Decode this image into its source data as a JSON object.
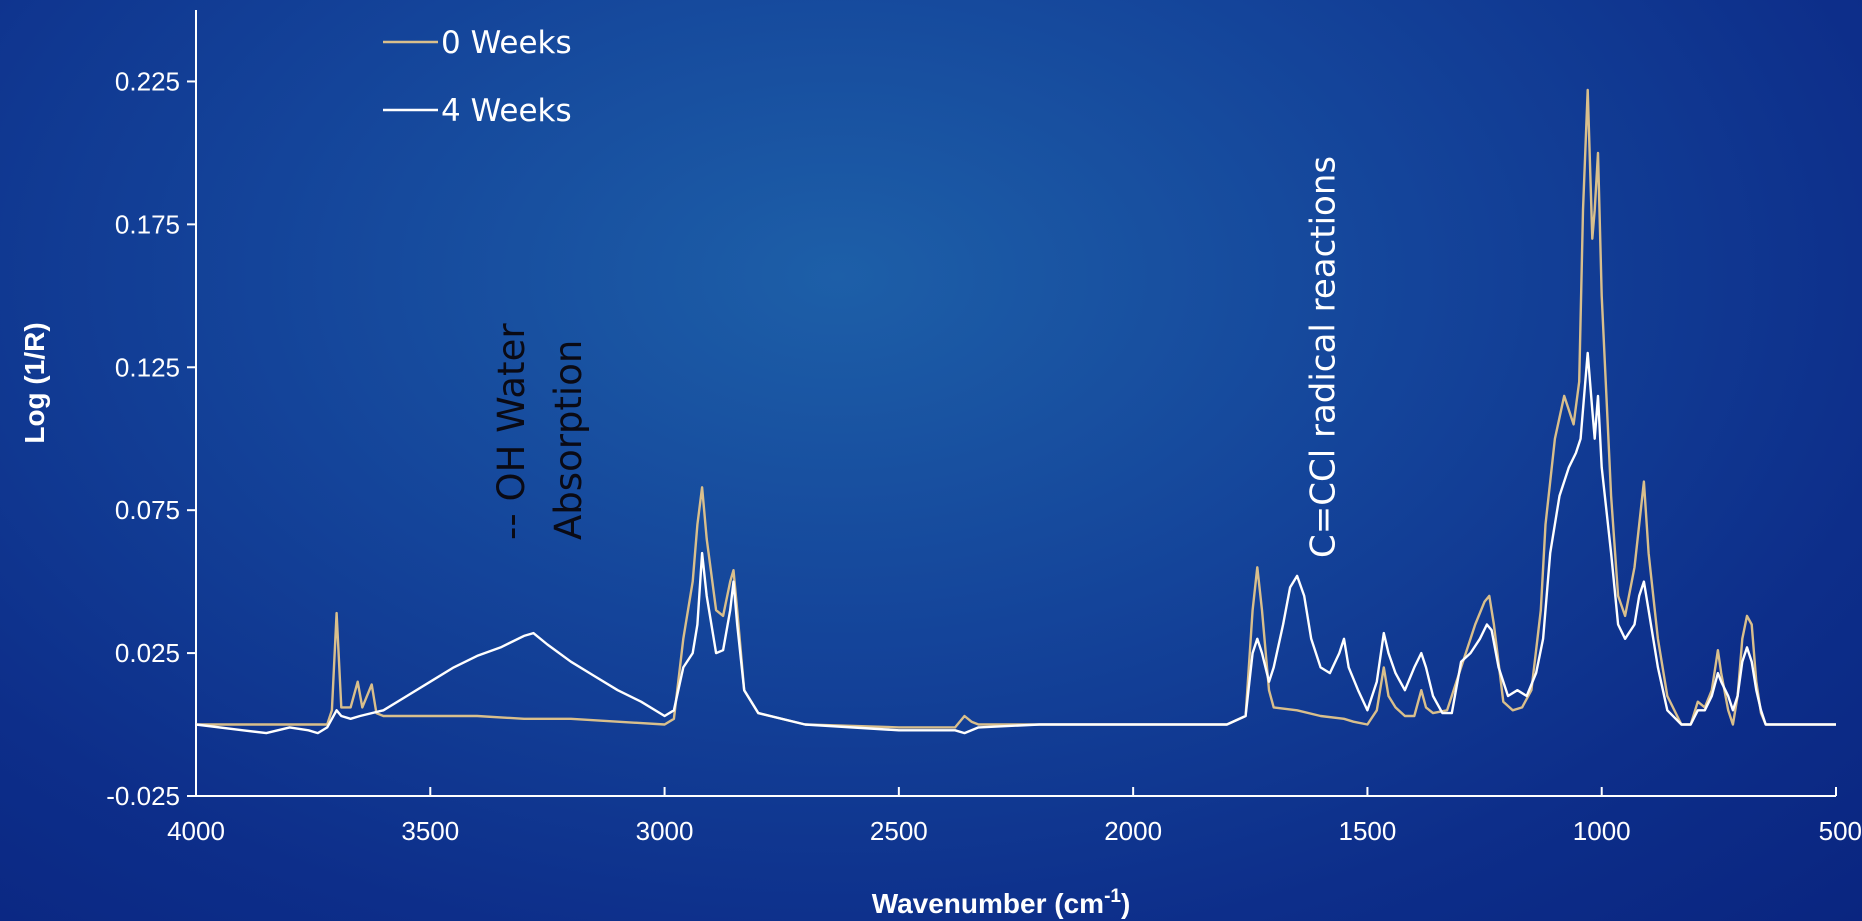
{
  "chart_data": {
    "type": "line",
    "title": "",
    "xlabel": "Wavenumber (cm",
    "xlabel_sup": "-1",
    "xlabel_end": ")",
    "ylabel": "Log (1/R)",
    "xlim": [
      4000,
      500
    ],
    "ylim": [
      -0.025,
      0.25
    ],
    "x_ticks": [
      "4000",
      "3500",
      "3000",
      "2500",
      "2000",
      "1500",
      "1000",
      "500"
    ],
    "y_ticks": [
      "-0.025",
      "0.025",
      "0.075",
      "0.125",
      "0.175",
      "0.225"
    ],
    "legend_position": "top-left",
    "annotations": [
      {
        "lines": [
          "-- OH Water",
          "Absorption"
        ],
        "x": 3300,
        "style": "dark"
      },
      {
        "lines": [
          "C=CCl radical reactions"
        ],
        "x": 1570,
        "style": "light"
      }
    ],
    "series": [
      {
        "name": "0 Weeks",
        "color": "#d9bf8c",
        "points": [
          [
            4000,
            0
          ],
          [
            3900,
            0
          ],
          [
            3800,
            0
          ],
          [
            3720,
            0
          ],
          [
            3710,
            0.005
          ],
          [
            3700,
            0.039
          ],
          [
            3690,
            0.006
          ],
          [
            3670,
            0.006
          ],
          [
            3655,
            0.015
          ],
          [
            3645,
            0.006
          ],
          [
            3625,
            0.014
          ],
          [
            3615,
            0.004
          ],
          [
            3600,
            0.003
          ],
          [
            3500,
            0.003
          ],
          [
            3400,
            0.003
          ],
          [
            3300,
            0.002
          ],
          [
            3200,
            0.002
          ],
          [
            3100,
            0.001
          ],
          [
            3000,
            0
          ],
          [
            2980,
            0.002
          ],
          [
            2960,
            0.03
          ],
          [
            2940,
            0.05
          ],
          [
            2930,
            0.07
          ],
          [
            2920,
            0.083
          ],
          [
            2910,
            0.065
          ],
          [
            2890,
            0.04
          ],
          [
            2875,
            0.038
          ],
          [
            2860,
            0.05
          ],
          [
            2853,
            0.054
          ],
          [
            2845,
            0.04
          ],
          [
            2830,
            0.012
          ],
          [
            2800,
            0.004
          ],
          [
            2700,
            0
          ],
          [
            2500,
            -0.001
          ],
          [
            2380,
            -0.001
          ],
          [
            2360,
            0.003
          ],
          [
            2345,
            0.001
          ],
          [
            2330,
            0
          ],
          [
            2200,
            0
          ],
          [
            2000,
            0
          ],
          [
            1800,
            0
          ],
          [
            1760,
            0.003
          ],
          [
            1745,
            0.04
          ],
          [
            1735,
            0.055
          ],
          [
            1725,
            0.04
          ],
          [
            1710,
            0.012
          ],
          [
            1700,
            0.006
          ],
          [
            1650,
            0.005
          ],
          [
            1600,
            0.003
          ],
          [
            1550,
            0.002
          ],
          [
            1530,
            0.001
          ],
          [
            1500,
            0
          ],
          [
            1480,
            0.005
          ],
          [
            1465,
            0.02
          ],
          [
            1455,
            0.01
          ],
          [
            1440,
            0.006
          ],
          [
            1420,
            0.003
          ],
          [
            1400,
            0.003
          ],
          [
            1385,
            0.012
          ],
          [
            1375,
            0.006
          ],
          [
            1360,
            0.004
          ],
          [
            1330,
            0.005
          ],
          [
            1300,
            0.02
          ],
          [
            1270,
            0.035
          ],
          [
            1250,
            0.043
          ],
          [
            1240,
            0.045
          ],
          [
            1230,
            0.035
          ],
          [
            1210,
            0.008
          ],
          [
            1190,
            0.005
          ],
          [
            1170,
            0.006
          ],
          [
            1150,
            0.012
          ],
          [
            1130,
            0.04
          ],
          [
            1120,
            0.07
          ],
          [
            1100,
            0.1
          ],
          [
            1080,
            0.115
          ],
          [
            1060,
            0.105
          ],
          [
            1048,
            0.12
          ],
          [
            1040,
            0.18
          ],
          [
            1030,
            0.222
          ],
          [
            1020,
            0.17
          ],
          [
            1015,
            0.18
          ],
          [
            1008,
            0.2
          ],
          [
            1000,
            0.15
          ],
          [
            980,
            0.08
          ],
          [
            965,
            0.045
          ],
          [
            950,
            0.038
          ],
          [
            930,
            0.055
          ],
          [
            920,
            0.07
          ],
          [
            910,
            0.085
          ],
          [
            900,
            0.06
          ],
          [
            880,
            0.03
          ],
          [
            860,
            0.01
          ],
          [
            830,
            0
          ],
          [
            810,
            0
          ],
          [
            795,
            0.008
          ],
          [
            780,
            0.006
          ],
          [
            765,
            0.012
          ],
          [
            752,
            0.026
          ],
          [
            745,
            0.018
          ],
          [
            730,
            0.005
          ],
          [
            720,
            0
          ],
          [
            710,
            0.01
          ],
          [
            700,
            0.03
          ],
          [
            690,
            0.038
          ],
          [
            680,
            0.035
          ],
          [
            670,
            0.015
          ],
          [
            660,
            0.004
          ],
          [
            650,
            0
          ],
          [
            500,
            0
          ]
        ]
      },
      {
        "name": "4 Weeks",
        "color": "#ffffff",
        "points": [
          [
            4000,
            0
          ],
          [
            3900,
            -0.002
          ],
          [
            3850,
            -0.003
          ],
          [
            3800,
            -0.001
          ],
          [
            3760,
            -0.002
          ],
          [
            3740,
            -0.003
          ],
          [
            3720,
            -0.001
          ],
          [
            3700,
            0.005
          ],
          [
            3690,
            0.003
          ],
          [
            3670,
            0.002
          ],
          [
            3650,
            0.003
          ],
          [
            3600,
            0.005
          ],
          [
            3550,
            0.01
          ],
          [
            3500,
            0.015
          ],
          [
            3450,
            0.02
          ],
          [
            3400,
            0.024
          ],
          [
            3350,
            0.027
          ],
          [
            3300,
            0.031
          ],
          [
            3280,
            0.032
          ],
          [
            3250,
            0.028
          ],
          [
            3200,
            0.022
          ],
          [
            3150,
            0.017
          ],
          [
            3100,
            0.012
          ],
          [
            3050,
            0.008
          ],
          [
            3000,
            0.003
          ],
          [
            2980,
            0.005
          ],
          [
            2960,
            0.02
          ],
          [
            2940,
            0.025
          ],
          [
            2930,
            0.035
          ],
          [
            2920,
            0.06
          ],
          [
            2910,
            0.045
          ],
          [
            2890,
            0.025
          ],
          [
            2875,
            0.026
          ],
          [
            2860,
            0.04
          ],
          [
            2853,
            0.05
          ],
          [
            2845,
            0.035
          ],
          [
            2830,
            0.012
          ],
          [
            2800,
            0.004
          ],
          [
            2700,
            0
          ],
          [
            2500,
            -0.002
          ],
          [
            2380,
            -0.002
          ],
          [
            2360,
            -0.003
          ],
          [
            2345,
            -0.002
          ],
          [
            2330,
            -0.001
          ],
          [
            2200,
            0
          ],
          [
            2000,
            0
          ],
          [
            1800,
            0
          ],
          [
            1760,
            0.003
          ],
          [
            1745,
            0.025
          ],
          [
            1735,
            0.03
          ],
          [
            1725,
            0.025
          ],
          [
            1710,
            0.015
          ],
          [
            1700,
            0.02
          ],
          [
            1680,
            0.035
          ],
          [
            1665,
            0.048
          ],
          [
            1650,
            0.052
          ],
          [
            1635,
            0.045
          ],
          [
            1620,
            0.03
          ],
          [
            1600,
            0.02
          ],
          [
            1580,
            0.018
          ],
          [
            1560,
            0.025
          ],
          [
            1550,
            0.03
          ],
          [
            1540,
            0.02
          ],
          [
            1520,
            0.012
          ],
          [
            1500,
            0.005
          ],
          [
            1480,
            0.015
          ],
          [
            1465,
            0.032
          ],
          [
            1455,
            0.025
          ],
          [
            1440,
            0.018
          ],
          [
            1420,
            0.012
          ],
          [
            1400,
            0.02
          ],
          [
            1385,
            0.025
          ],
          [
            1375,
            0.02
          ],
          [
            1360,
            0.01
          ],
          [
            1340,
            0.004
          ],
          [
            1320,
            0.004
          ],
          [
            1300,
            0.022
          ],
          [
            1280,
            0.025
          ],
          [
            1260,
            0.03
          ],
          [
            1245,
            0.035
          ],
          [
            1235,
            0.033
          ],
          [
            1220,
            0.02
          ],
          [
            1200,
            0.01
          ],
          [
            1180,
            0.012
          ],
          [
            1160,
            0.01
          ],
          [
            1140,
            0.018
          ],
          [
            1125,
            0.03
          ],
          [
            1110,
            0.06
          ],
          [
            1090,
            0.08
          ],
          [
            1070,
            0.09
          ],
          [
            1055,
            0.095
          ],
          [
            1045,
            0.1
          ],
          [
            1035,
            0.12
          ],
          [
            1030,
            0.13
          ],
          [
            1020,
            0.11
          ],
          [
            1015,
            0.1
          ],
          [
            1008,
            0.115
          ],
          [
            1000,
            0.09
          ],
          [
            980,
            0.06
          ],
          [
            965,
            0.035
          ],
          [
            950,
            0.03
          ],
          [
            930,
            0.035
          ],
          [
            920,
            0.045
          ],
          [
            910,
            0.05
          ],
          [
            900,
            0.04
          ],
          [
            880,
            0.02
          ],
          [
            860,
            0.005
          ],
          [
            830,
            0
          ],
          [
            810,
            0
          ],
          [
            795,
            0.005
          ],
          [
            780,
            0.005
          ],
          [
            765,
            0.01
          ],
          [
            752,
            0.018
          ],
          [
            745,
            0.015
          ],
          [
            730,
            0.01
          ],
          [
            720,
            0.005
          ],
          [
            710,
            0.01
          ],
          [
            700,
            0.022
          ],
          [
            690,
            0.027
          ],
          [
            680,
            0.022
          ],
          [
            670,
            0.012
          ],
          [
            660,
            0.005
          ],
          [
            650,
            0
          ],
          [
            500,
            0
          ]
        ]
      }
    ]
  }
}
